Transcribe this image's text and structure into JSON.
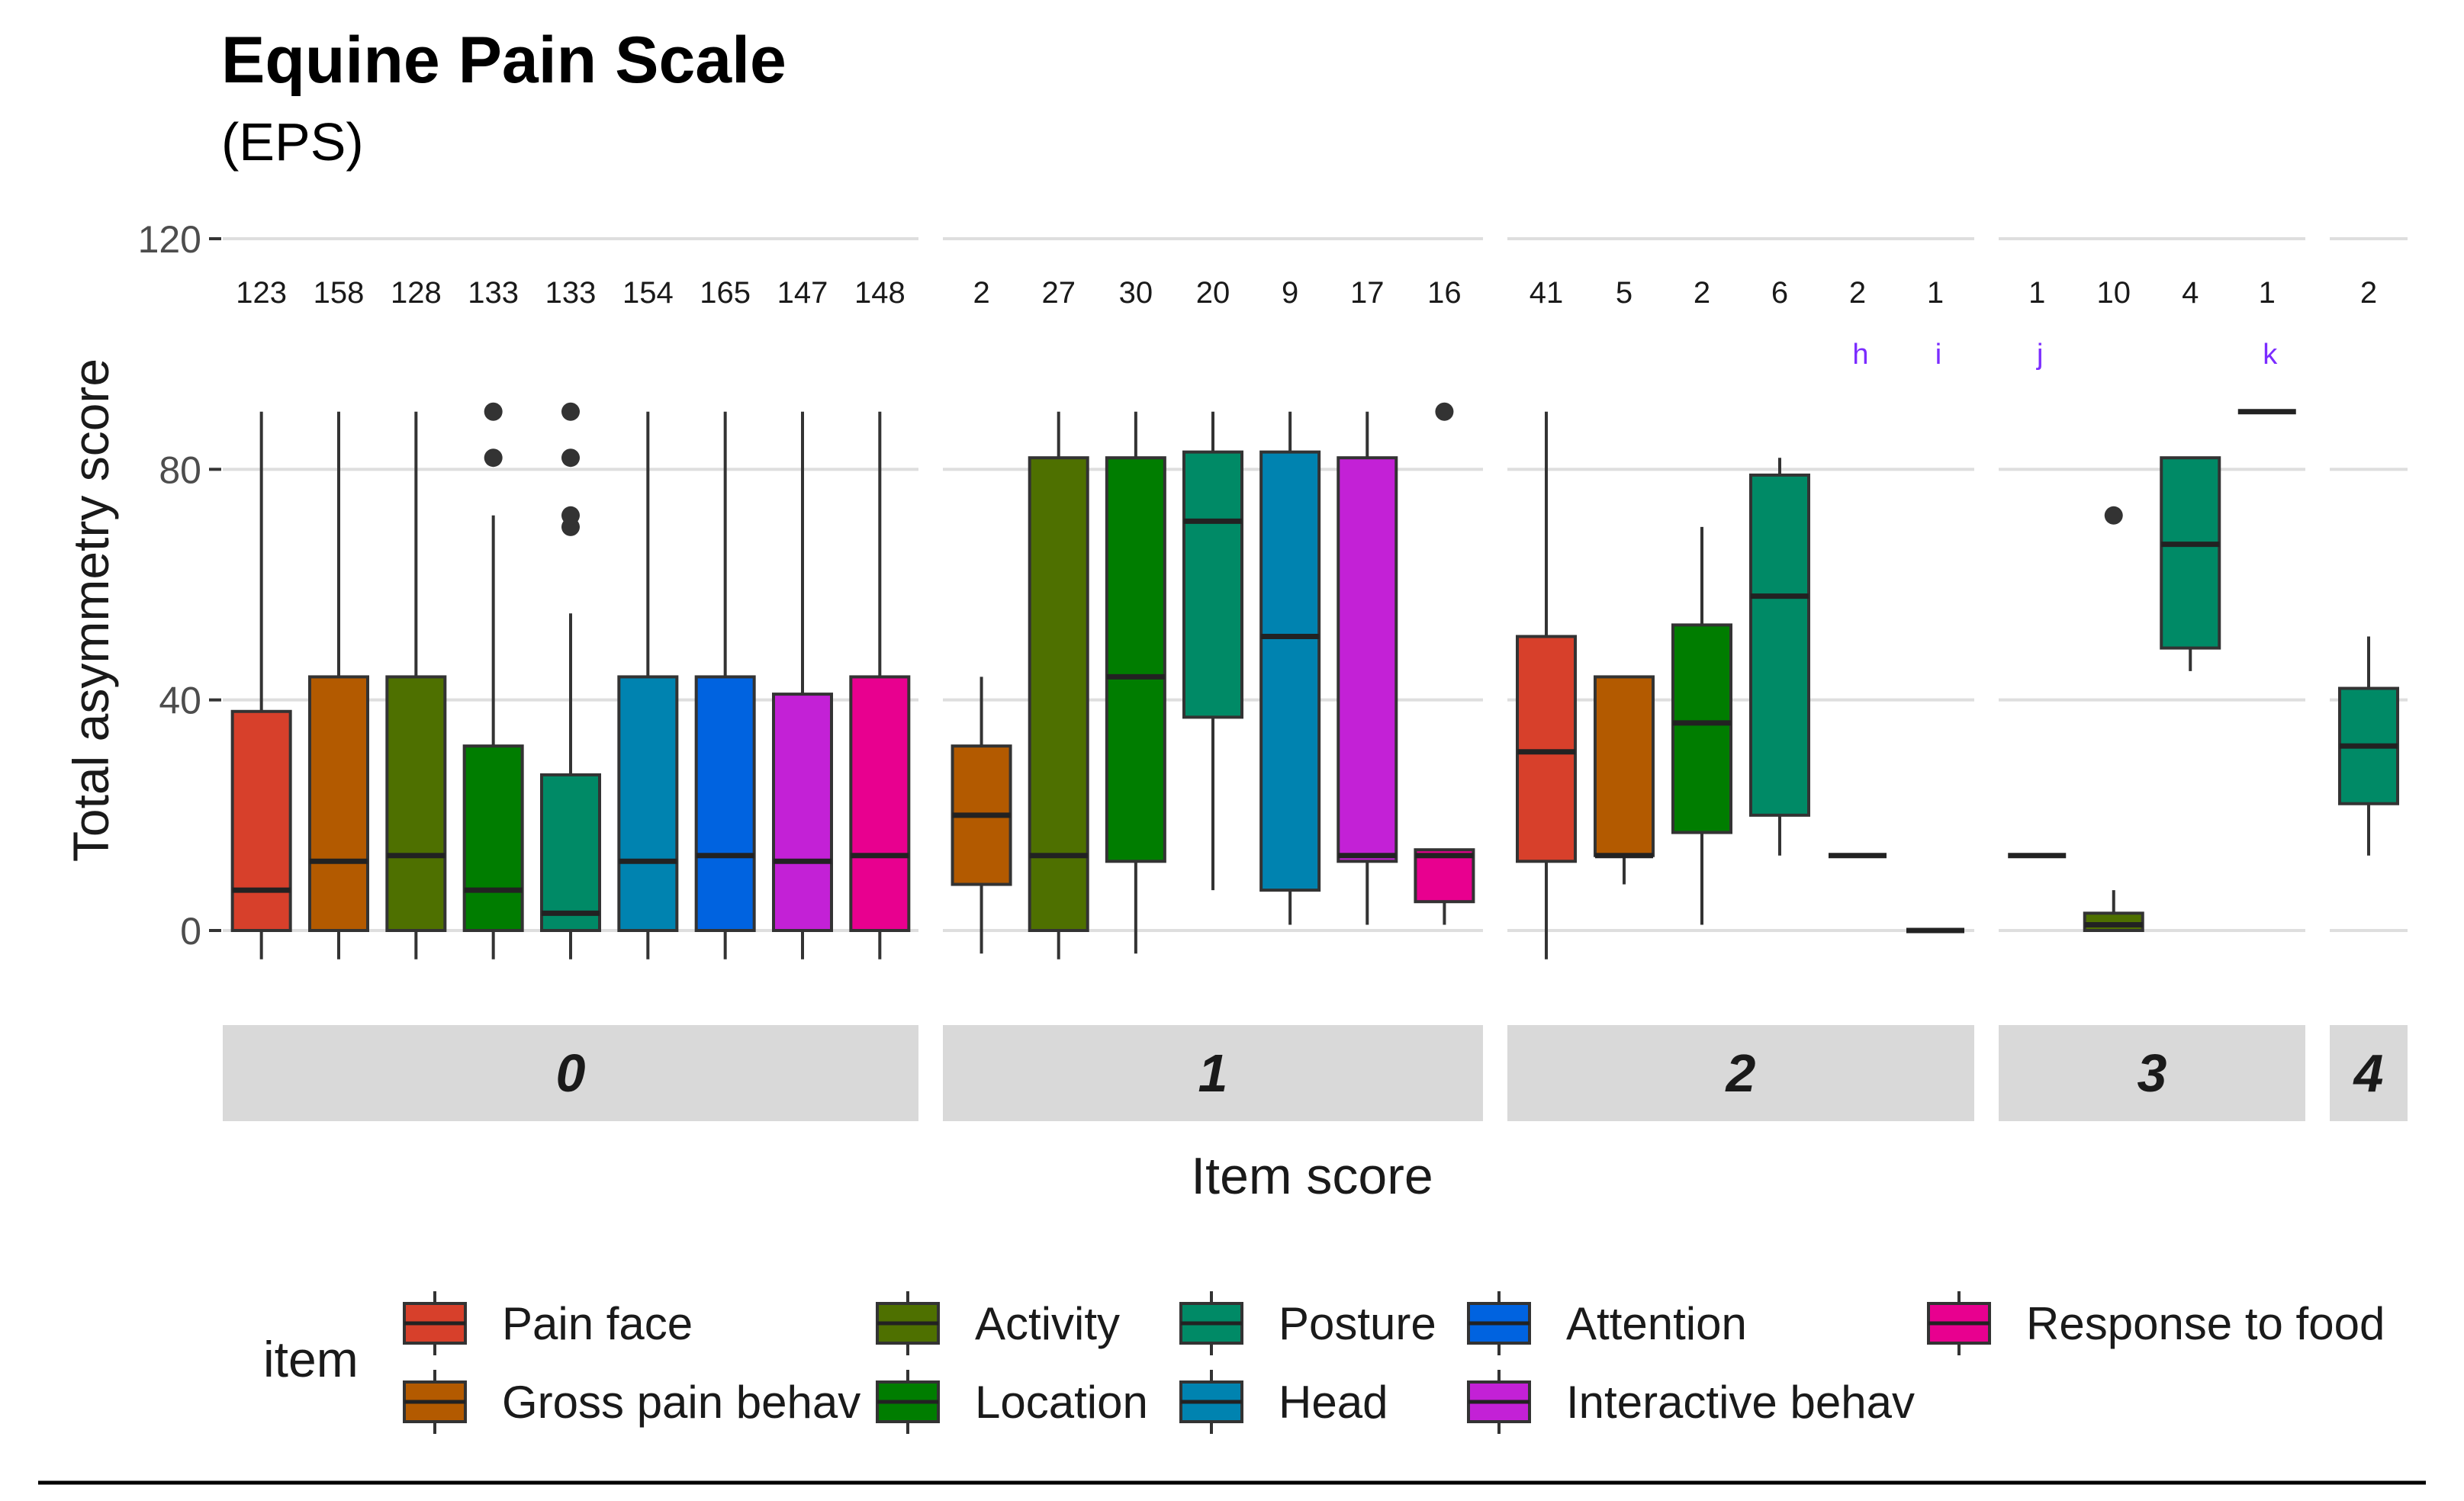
{
  "chart_data": {
    "type": "boxplot",
    "title": "Equine Pain Scale",
    "subtitle": "(EPS)",
    "xlabel": "Item score",
    "ylabel": "Total asymmetry score",
    "ylim": [
      -5,
      120
    ],
    "yticks": [
      0,
      40,
      80,
      120
    ],
    "legend_title": "item",
    "legend_position": "bottom",
    "items": [
      {
        "name": "Pain face",
        "color": "#D7402B"
      },
      {
        "name": "Gross pain behav",
        "color": "#B35A00"
      },
      {
        "name": "Activity",
        "color": "#4E7000"
      },
      {
        "name": "Location",
        "color": "#007D00"
      },
      {
        "name": "Posture",
        "color": "#008A66"
      },
      {
        "name": "Head",
        "color": "#0083B0"
      },
      {
        "name": "Attention",
        "color": "#0063E0"
      },
      {
        "name": "Interactive behav",
        "color": "#C321D6"
      },
      {
        "name": "Response to food",
        "color": "#E8008F"
      }
    ],
    "panels": [
      {
        "label": "0",
        "slots": 9,
        "boxes": [
          {
            "item": "Pain face",
            "n": "123",
            "whisker_low": -5,
            "q1": 0,
            "median": 7,
            "q3": 38,
            "whisker_high": 90,
            "outliers": []
          },
          {
            "item": "Gross pain behav",
            "n": "158",
            "whisker_low": -5,
            "q1": 0,
            "median": 12,
            "q3": 44,
            "whisker_high": 90,
            "outliers": []
          },
          {
            "item": "Activity",
            "n": "128",
            "whisker_low": -5,
            "q1": 0,
            "median": 13,
            "q3": 44,
            "whisker_high": 90,
            "outliers": []
          },
          {
            "item": "Location",
            "n": "133",
            "whisker_low": -5,
            "q1": 0,
            "median": 7,
            "q3": 32,
            "whisker_high": 72,
            "outliers": [
              82,
              90
            ]
          },
          {
            "item": "Posture",
            "n": "133",
            "whisker_low": -5,
            "q1": 0,
            "median": 3,
            "q3": 27,
            "whisker_high": 55,
            "outliers": [
              70,
              72,
              82,
              90
            ]
          },
          {
            "item": "Head",
            "n": "154",
            "whisker_low": -5,
            "q1": 0,
            "median": 12,
            "q3": 44,
            "whisker_high": 90,
            "outliers": []
          },
          {
            "item": "Attention",
            "n": "165",
            "whisker_low": -5,
            "q1": 0,
            "median": 13,
            "q3": 44,
            "whisker_high": 90,
            "outliers": []
          },
          {
            "item": "Interactive behav",
            "n": "147",
            "whisker_low": -5,
            "q1": 0,
            "median": 12,
            "q3": 41,
            "whisker_high": 90,
            "outliers": []
          },
          {
            "item": "Response to food",
            "n": "148",
            "whisker_low": -5,
            "q1": 0,
            "median": 13,
            "q3": 44,
            "whisker_high": 90,
            "outliers": []
          }
        ]
      },
      {
        "label": "1",
        "slots": 7,
        "boxes": [
          {
            "item": "Gross pain behav",
            "n": "2",
            "whisker_low": -4,
            "q1": 8,
            "median": 20,
            "q3": 32,
            "whisker_high": 44,
            "outliers": []
          },
          {
            "item": "Activity",
            "n": "27",
            "whisker_low": -5,
            "q1": 0,
            "median": 13,
            "q3": 82,
            "whisker_high": 90,
            "outliers": []
          },
          {
            "item": "Location",
            "n": "30",
            "whisker_low": -4,
            "q1": 12,
            "median": 44,
            "q3": 82,
            "whisker_high": 90,
            "outliers": []
          },
          {
            "item": "Posture",
            "n": "20",
            "whisker_low": 7,
            "q1": 37,
            "median": 71,
            "q3": 83,
            "whisker_high": 90,
            "outliers": []
          },
          {
            "item": "Head",
            "n": "9",
            "whisker_low": 1,
            "q1": 7,
            "median": 51,
            "q3": 83,
            "whisker_high": 90,
            "outliers": []
          },
          {
            "item": "Interactive behav",
            "n": "17",
            "whisker_low": 1,
            "q1": 12,
            "median": 13,
            "q3": 82,
            "whisker_high": 90,
            "outliers": []
          },
          {
            "item": "Response to food",
            "n": "16",
            "whisker_low": 1,
            "q1": 5,
            "median": 13,
            "q3": 14,
            "whisker_high": 14,
            "outliers": [
              90
            ]
          }
        ]
      },
      {
        "label": "2",
        "slots": 6,
        "boxes": [
          {
            "item": "Pain face",
            "n": "41",
            "annotation": "",
            "whisker_low": -5,
            "q1": 12,
            "median": 31,
            "q3": 51,
            "whisker_high": 90,
            "outliers": []
          },
          {
            "item": "Gross pain behav",
            "n": "5",
            "annotation": "",
            "whisker_low": 8,
            "q1": 13,
            "median": 13,
            "q3": 44,
            "whisker_high": 44,
            "outliers": []
          },
          {
            "item": "Location",
            "n": "2",
            "annotation": "",
            "whisker_low": 1,
            "q1": 17,
            "median": 36,
            "q3": 53,
            "whisker_high": 70,
            "outliers": []
          },
          {
            "item": "Posture",
            "n": "6",
            "annotation": "",
            "whisker_low": 13,
            "q1": 20,
            "median": 58,
            "q3": 79,
            "whisker_high": 82,
            "outliers": []
          },
          {
            "item": "Head",
            "n": "2",
            "annotation": "h",
            "whisker_low": 13,
            "q1": 13,
            "median": 13,
            "q3": 13,
            "whisker_high": 13,
            "outliers": []
          },
          {
            "item": "Attention",
            "n": "1",
            "annotation": "i",
            "whisker_low": 0,
            "q1": 0,
            "median": 0,
            "q3": 0,
            "whisker_high": 0,
            "outliers": []
          }
        ]
      },
      {
        "label": "3",
        "slots": 4,
        "boxes": [
          {
            "item": "Gross pain behav",
            "n": "1",
            "annotation": "j",
            "whisker_low": 13,
            "q1": 13,
            "median": 13,
            "q3": 13,
            "whisker_high": 13,
            "outliers": []
          },
          {
            "item": "Activity",
            "n": "10",
            "annotation": "",
            "whisker_low": 0,
            "q1": 0,
            "median": 1,
            "q3": 3,
            "whisker_high": 7,
            "outliers": [
              72
            ]
          },
          {
            "item": "Posture",
            "n": "4",
            "annotation": "",
            "whisker_low": 45,
            "q1": 49,
            "median": 67,
            "q3": 82,
            "whisker_high": 82,
            "outliers": []
          },
          {
            "item": "Head",
            "n": "1",
            "annotation": "k",
            "whisker_low": 90,
            "q1": 90,
            "median": 90,
            "q3": 90,
            "whisker_high": 90,
            "outliers": []
          }
        ]
      },
      {
        "label": "4",
        "slots": 1,
        "boxes": [
          {
            "item": "Posture",
            "n": "2",
            "annotation": "",
            "whisker_low": 13,
            "q1": 22,
            "median": 32,
            "q3": 42,
            "whisker_high": 51,
            "outliers": []
          }
        ]
      }
    ]
  }
}
